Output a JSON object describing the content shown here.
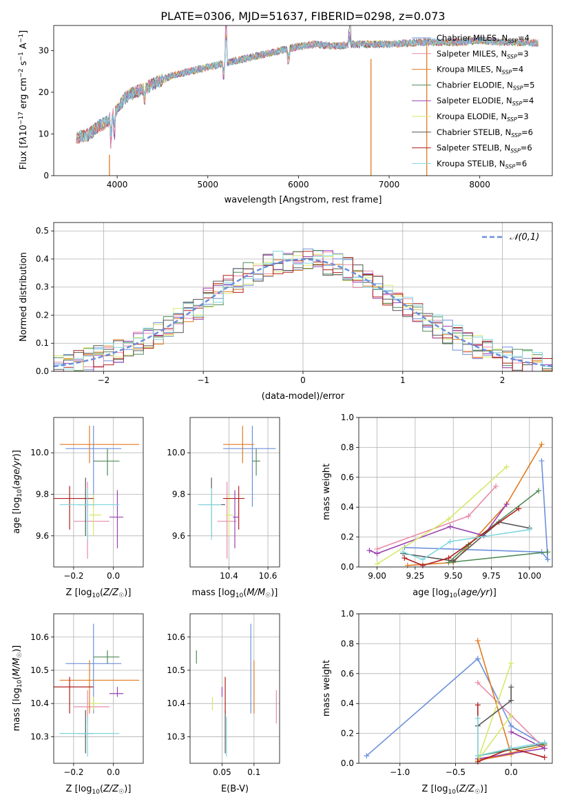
{
  "title": "PLATE=0306, MJD=51637, FIBERID=0298, z=0.073",
  "colors": {
    "Chabrier MILES": "#6a8fdc",
    "Salpeter MILES": "#e88aa8",
    "Kroupa MILES": "#e07a1f",
    "Chabrier ELODIE": "#4f8a55",
    "Salpeter ELODIE": "#9a3fb0",
    "Kroupa ELODIE": "#d6e86a",
    "Chabrier STELIB": "#555555",
    "Salpeter STELIB": "#b01e1e",
    "Kroupa STELIB": "#7fd6de"
  },
  "chart_data": [
    {
      "id": "spectrum",
      "type": "line",
      "xlabel": "wavelength [Angstrom, rest frame]",
      "ylabel": "Flux [f_λ10⁻¹⁷ erg cm⁻² s⁻¹ A⁻¹]",
      "xlim": [
        3300,
        8800
      ],
      "ylim": [
        0,
        36
      ],
      "xticks": [
        4000,
        5000,
        6000,
        7000,
        8000
      ],
      "yticks": [
        0,
        10,
        20,
        30
      ],
      "legend_position": "top-right",
      "legend": [
        {
          "label": "Chabrier MILES, N_SSP=4",
          "color_key": "Chabrier MILES"
        },
        {
          "label": "Salpeter MILES, N_SSP=3",
          "color_key": "Salpeter MILES"
        },
        {
          "label": "Kroupa MILES, N_SSP=4",
          "color_key": "Kroupa MILES"
        },
        {
          "label": "Chabrier ELODIE, N_SSP=5",
          "color_key": "Chabrier ELODIE"
        },
        {
          "label": "Salpeter ELODIE, N_SSP=4",
          "color_key": "Salpeter ELODIE"
        },
        {
          "label": "Kroupa ELODIE, N_SSP=3",
          "color_key": "Kroupa ELODIE"
        },
        {
          "label": "Chabrier STELIB, N_SSP=6",
          "color_key": "Chabrier STELIB"
        },
        {
          "label": "Salpeter STELIB, N_SSP=6",
          "color_key": "Salpeter STELIB"
        },
        {
          "label": "Kroupa STELIB, N_SSP=6",
          "color_key": "Kroupa STELIB"
        }
      ],
      "continuum": [
        [
          3550,
          9
        ],
        [
          3700,
          10
        ],
        [
          3800,
          12
        ],
        [
          3900,
          13
        ],
        [
          4000,
          16
        ],
        [
          4100,
          19
        ],
        [
          4200,
          20
        ],
        [
          4400,
          22
        ],
        [
          4600,
          24
        ],
        [
          4800,
          25
        ],
        [
          5000,
          26
        ],
        [
          5200,
          27
        ],
        [
          5400,
          28
        ],
        [
          5600,
          29
        ],
        [
          5800,
          30
        ],
        [
          6000,
          31
        ],
        [
          6200,
          31.5
        ],
        [
          6400,
          31
        ],
        [
          6600,
          31.5
        ],
        [
          6800,
          31.5
        ],
        [
          7000,
          31.5
        ],
        [
          7200,
          31.8
        ],
        [
          7400,
          32
        ],
        [
          7600,
          32
        ],
        [
          7800,
          32
        ],
        [
          8000,
          32.5
        ],
        [
          8200,
          32
        ],
        [
          8400,
          32
        ],
        [
          8600,
          31.8
        ]
      ],
      "features": [
        [
          3935,
          -6
        ],
        [
          3970,
          -5
        ],
        [
          4300,
          -3
        ],
        [
          5175,
          -3
        ],
        [
          5200,
          10
        ],
        [
          5890,
          -3
        ],
        [
          6563,
          2.5
        ]
      ],
      "spikes": [
        {
          "x": 3915,
          "top": 5,
          "color_key": "Kroupa MILES"
        },
        {
          "x": 6800,
          "top": 28,
          "color_key": "Kroupa MILES"
        },
        {
          "x": 7415,
          "top": 32,
          "color_key": "Kroupa MILES"
        }
      ]
    },
    {
      "id": "residuals",
      "type": "histogram",
      "xlabel": "(data-model)/error",
      "ylabel": "Normed distribution",
      "xlim": [
        -2.5,
        2.5
      ],
      "ylim": [
        0,
        0.53
      ],
      "xticks": [
        -2,
        -1,
        0,
        1,
        2
      ],
      "yticks": [
        0.0,
        0.1,
        0.2,
        0.3,
        0.4,
        0.5
      ],
      "legend_position": "top-right",
      "legend": [
        {
          "label": "𝒩(0,1)",
          "style": "dashed",
          "color": "#6a8fdc"
        }
      ],
      "bin_width": 0.1
    },
    {
      "id": "age-vs-Z",
      "type": "scatter",
      "xlabel": "Z [log₁₀(Z/Z☉)]",
      "ylabel": "age  [log₁₀(age/yr)]",
      "xlim": [
        -0.3,
        0.15
      ],
      "ylim": [
        9.45,
        10.17
      ],
      "xticks": [
        -0.2,
        0.0
      ],
      "yticks": [
        9.6,
        9.8,
        10.0
      ]
    },
    {
      "id": "age-vs-mass",
      "type": "scatter",
      "xlabel": "mass [log₁₀(M/M☉)]",
      "ylabel": "",
      "xlim": [
        10.2,
        10.66
      ],
      "ylim": [
        9.45,
        10.17
      ],
      "xticks": [
        10.4,
        10.6
      ],
      "yticks": [
        9.6,
        9.8,
        10.0
      ]
    },
    {
      "id": "weight-vs-age",
      "type": "line",
      "xlabel": "age  [log₁₀(age/yr)]",
      "ylabel": "mass weight",
      "xlim": [
        8.88,
        10.15
      ],
      "ylim": [
        0,
        1
      ],
      "xticks": [
        9.0,
        9.25,
        9.5,
        9.75,
        10.0
      ],
      "yticks": [
        0.0,
        0.2,
        0.4,
        0.6,
        0.8,
        1.0
      ]
    },
    {
      "id": "mass-vs-Z",
      "type": "scatter",
      "xlabel": "Z [log₁₀(Z/Z☉)]",
      "ylabel": "mass [log₁₀(M/M☉)]",
      "xlim": [
        -0.3,
        0.15
      ],
      "ylim": [
        10.22,
        10.67
      ],
      "xticks": [
        -0.2,
        0.0
      ],
      "yticks": [
        10.3,
        10.4,
        10.5,
        10.6
      ]
    },
    {
      "id": "mass-vs-EBV",
      "type": "scatter",
      "xlabel": "E(B-V)",
      "ylabel": "",
      "xlim": [
        0.0,
        0.14
      ],
      "ylim": [
        10.22,
        10.67
      ],
      "xticks": [
        0.05,
        0.1
      ],
      "yticks": [
        10.3,
        10.4,
        10.5,
        10.6
      ]
    },
    {
      "id": "weight-vs-Z",
      "type": "line",
      "xlabel": "Z [log₁₀(Z/Z☉)]",
      "ylabel": "mass weight",
      "xlim": [
        -1.37,
        0.37
      ],
      "ylim": [
        0,
        1
      ],
      "xticks": [
        -1.0,
        -0.5,
        0.0
      ],
      "yticks": [
        0.0,
        0.2,
        0.4,
        0.6,
        0.8,
        1.0
      ]
    }
  ],
  "models": [
    {
      "name": "Chabrier MILES",
      "Z": [
        -0.1,
        0.05
      ],
      "Z_err": [
        -0.24,
        0.04
      ],
      "age": [
        10.02,
        10.13,
        9.74
      ],
      "mass": [
        10.52,
        10.64,
        10.37
      ],
      "ebv": 0.095,
      "age_w": [
        [
          10.08,
          0.71
        ],
        [
          10.12,
          0.05
        ],
        [
          10.08,
          0.1
        ],
        [
          9.18,
          0.13
        ]
      ],
      "Z_w": [
        [
          -1.3,
          0.05
        ],
        [
          -0.3,
          0.7
        ],
        [
          0.0,
          0.25
        ],
        [
          0.3,
          0.12
        ]
      ]
    },
    {
      "name": "Salpeter MILES",
      "Z": [
        -0.13,
        0.0
      ],
      "Z_err": [
        -0.2,
        -0.02
      ],
      "age": [
        9.67,
        9.86,
        9.49
      ],
      "mass": [
        10.39,
        10.44,
        10.34
      ],
      "ebv": 0.135,
      "age_w": [
        [
          9.0,
          0.12
        ],
        [
          9.6,
          0.34
        ],
        [
          9.78,
          0.54
        ]
      ],
      "Z_w": [
        [
          -0.3,
          0.54
        ],
        [
          0.0,
          0.32
        ],
        [
          0.3,
          0.1
        ]
      ]
    },
    {
      "name": "Kroupa MILES",
      "Z": [
        -0.12,
        0.0
      ],
      "Z_err": [
        -0.27,
        0.13
      ],
      "age": [
        10.04,
        10.13,
        9.95
      ],
      "mass": [
        10.47,
        10.53,
        10.37
      ],
      "ebv": 0.1,
      "age_w": [
        [
          10.08,
          0.82
        ],
        [
          9.85,
          0.42
        ],
        [
          9.5,
          0.03
        ],
        [
          9.2,
          0.01
        ]
      ],
      "Z_w": [
        [
          -0.3,
          0.82
        ],
        [
          0.0,
          0.06
        ],
        [
          -0.3,
          0.02
        ],
        [
          0.3,
          0.12
        ]
      ]
    },
    {
      "name": "Chabrier ELODIE",
      "Z": [
        -0.03,
        0.0
      ],
      "Z_err": [
        -0.1,
        0.03
      ],
      "age": [
        9.96,
        10.02,
        9.89
      ],
      "mass": [
        10.54,
        10.56,
        10.52
      ],
      "ebv": 0.01,
      "age_w": [
        [
          10.06,
          0.51
        ],
        [
          9.6,
          0.15
        ],
        [
          9.47,
          0.03
        ],
        [
          10.12,
          0.1
        ]
      ],
      "Z_w": [
        [
          0.0,
          0.1
        ],
        [
          -0.3,
          0.05
        ],
        [
          0.3,
          0.13
        ]
      ]
    },
    {
      "name": "Salpeter ELODIE",
      "Z": [
        0.02,
        0.0
      ],
      "Z_err": [
        -0.02,
        0.05
      ],
      "age": [
        9.69,
        9.82,
        9.54
      ],
      "mass": [
        10.43,
        10.45,
        10.42
      ],
      "ebv": 0.05,
      "age_w": [
        [
          8.95,
          0.11
        ],
        [
          9.0,
          0.09
        ],
        [
          9.48,
          0.27
        ],
        [
          9.7,
          0.21
        ],
        [
          9.85,
          0.42
        ]
      ],
      "Z_w": [
        [
          0.0,
          0.21
        ],
        [
          0.3,
          0.1
        ],
        [
          -0.3,
          0.03
        ]
      ]
    },
    {
      "name": "Kroupa ELODIE",
      "Z": [
        -0.1,
        0.0
      ],
      "Z_err": [
        -0.12,
        -0.06
      ],
      "age": [
        9.7,
        9.8,
        9.6
      ],
      "mass": [
        10.4,
        10.42,
        10.38
      ],
      "ebv": 0.035,
      "age_w": [
        [
          9.0,
          0.02
        ],
        [
          9.47,
          0.32
        ],
        [
          9.85,
          0.67
        ]
      ],
      "Z_w": [
        [
          0.0,
          0.67
        ],
        [
          -0.3,
          0.02
        ],
        [
          0.0,
          0.32
        ]
      ]
    },
    {
      "name": "Chabrier STELIB",
      "Z": [
        -0.14,
        0.0
      ],
      "Z_err": [
        -0.18,
        -0.1
      ],
      "age": [
        9.75,
        9.88,
        9.6
      ],
      "mass": [
        10.31,
        10.38,
        10.25
      ],
      "ebv": 0.055,
      "age_w": [
        [
          9.17,
          0.09
        ],
        [
          9.5,
          0.04
        ],
        [
          9.8,
          0.3
        ],
        [
          10.0,
          0.26
        ]
      ],
      "Z_w": [
        [
          -0.3,
          0.25
        ],
        [
          0.0,
          0.42
        ],
        [
          0.0,
          0.51
        ]
      ]
    },
    {
      "name": "Salpeter STELIB",
      "Z": [
        -0.22,
        0.0
      ],
      "Z_err": [
        -0.3,
        -0.1
      ],
      "age": [
        9.78,
        9.84,
        9.63
      ],
      "mass": [
        10.45,
        10.48,
        10.37
      ],
      "ebv": 0.055,
      "age_w": [
        [
          9.18,
          0.06
        ],
        [
          9.3,
          0.01
        ],
        [
          9.47,
          0.06
        ],
        [
          9.93,
          0.39
        ]
      ],
      "Z_w": [
        [
          -0.3,
          0.39
        ],
        [
          -0.3,
          0.01
        ],
        [
          0.0,
          0.1
        ],
        [
          0.3,
          0.04
        ]
      ]
    },
    {
      "name": "Kroupa STELIB",
      "Z": [
        -0.13,
        0.0
      ],
      "Z_err": [
        -0.27,
        0.03
      ],
      "age": [
        9.75,
        9.83,
        9.58
      ],
      "mass": [
        10.31,
        10.36,
        10.24
      ],
      "ebv": 0.057,
      "age_w": [
        [
          9.17,
          0.1
        ],
        [
          9.3,
          0.05
        ],
        [
          9.48,
          0.17
        ],
        [
          10.0,
          0.25
        ]
      ],
      "Z_w": [
        [
          -0.3,
          0.3
        ],
        [
          -0.3,
          0.05
        ],
        [
          0.0,
          0.1
        ],
        [
          0.3,
          0.14
        ]
      ]
    }
  ]
}
